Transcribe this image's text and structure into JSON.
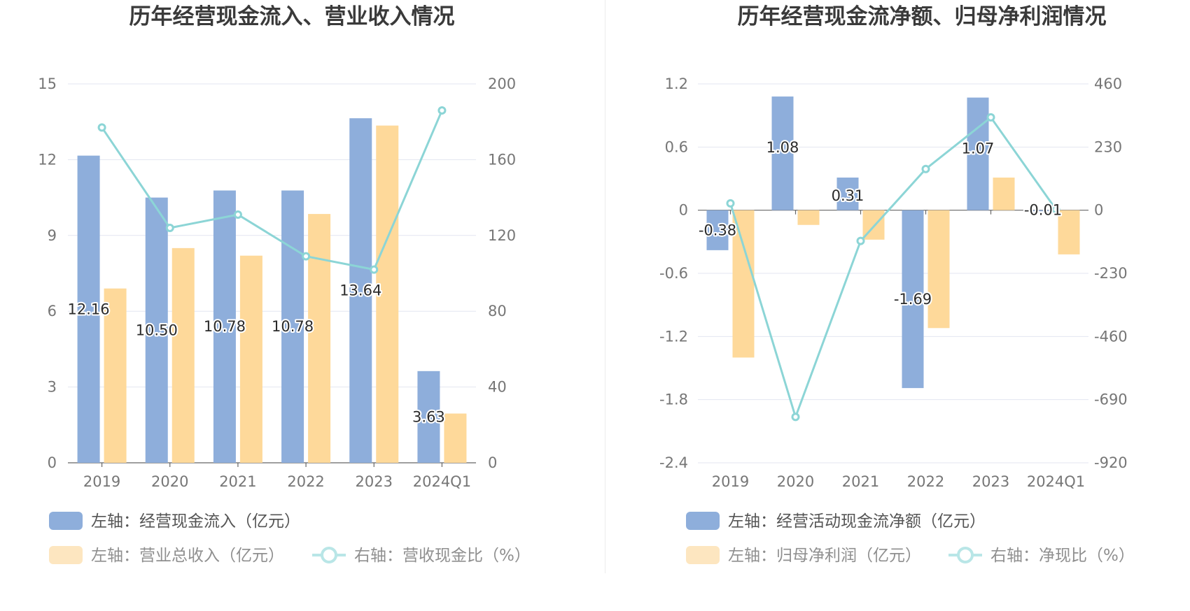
{
  "colors": {
    "bar1": "#8eaedb",
    "bar2": "#fed99a",
    "line": "#8cd5d6"
  },
  "chart_data": [
    {
      "type": "bar",
      "title": "历年经营现金流入、营业收入情况",
      "categories": [
        "2019",
        "2020",
        "2021",
        "2022",
        "2023",
        "2024Q1"
      ],
      "left_axis": {
        "min": 0,
        "max": 15,
        "ticks": [
          "0",
          "3",
          "6",
          "9",
          "12",
          "15"
        ]
      },
      "right_axis": {
        "min": 0,
        "max": 200,
        "ticks": [
          "0",
          "40",
          "80",
          "120",
          "160",
          "200"
        ]
      },
      "series": [
        {
          "name": "左轴：经营现金流入（亿元）",
          "kind": "bar",
          "axis": "left",
          "values": [
            12.16,
            10.5,
            10.78,
            10.78,
            13.64,
            3.63
          ],
          "labels": [
            "12.16",
            "10.50",
            "10.78",
            "10.78",
            "13.64",
            "3.63"
          ]
        },
        {
          "name": "左轴：营业总收入（亿元）",
          "kind": "bar",
          "axis": "left",
          "values": [
            6.9,
            8.5,
            8.2,
            9.85,
            13.35,
            1.95
          ]
        },
        {
          "name": "右轴：营收现金比（%）",
          "kind": "line",
          "axis": "right",
          "values": [
            177,
            124,
            131,
            109,
            102,
            186
          ]
        }
      ]
    },
    {
      "type": "bar",
      "title": "历年经营现金流净额、归母净利润情况",
      "categories": [
        "2019",
        "2020",
        "2021",
        "2022",
        "2023",
        "2024Q1"
      ],
      "left_axis": {
        "min": -2.4,
        "max": 1.2,
        "ticks": [
          "-2.4",
          "-1.8",
          "-1.2",
          "-0.6",
          "0",
          "0.6",
          "1.2"
        ]
      },
      "right_axis": {
        "min": -920,
        "max": 460,
        "ticks": [
          "-920",
          "-690",
          "-460",
          "-230",
          "0",
          "230",
          "460"
        ]
      },
      "series": [
        {
          "name": "左轴：经营活动现金流净额（亿元）",
          "kind": "bar",
          "axis": "left",
          "values": [
            -0.38,
            1.08,
            0.31,
            -1.69,
            1.07,
            -0.01
          ],
          "labels": [
            "-0.38",
            "1.08",
            "0.31",
            "-1.69",
            "1.07",
            "-0.01"
          ]
        },
        {
          "name": "左轴：归母净利润（亿元）",
          "kind": "bar",
          "axis": "left",
          "values": [
            -1.4,
            -0.14,
            -0.28,
            -1.12,
            0.31,
            -0.42
          ]
        },
        {
          "name": "右轴：净现比（%）",
          "kind": "line",
          "axis": "right",
          "values": [
            25,
            -753,
            -112,
            150,
            338,
            3
          ]
        }
      ]
    }
  ]
}
